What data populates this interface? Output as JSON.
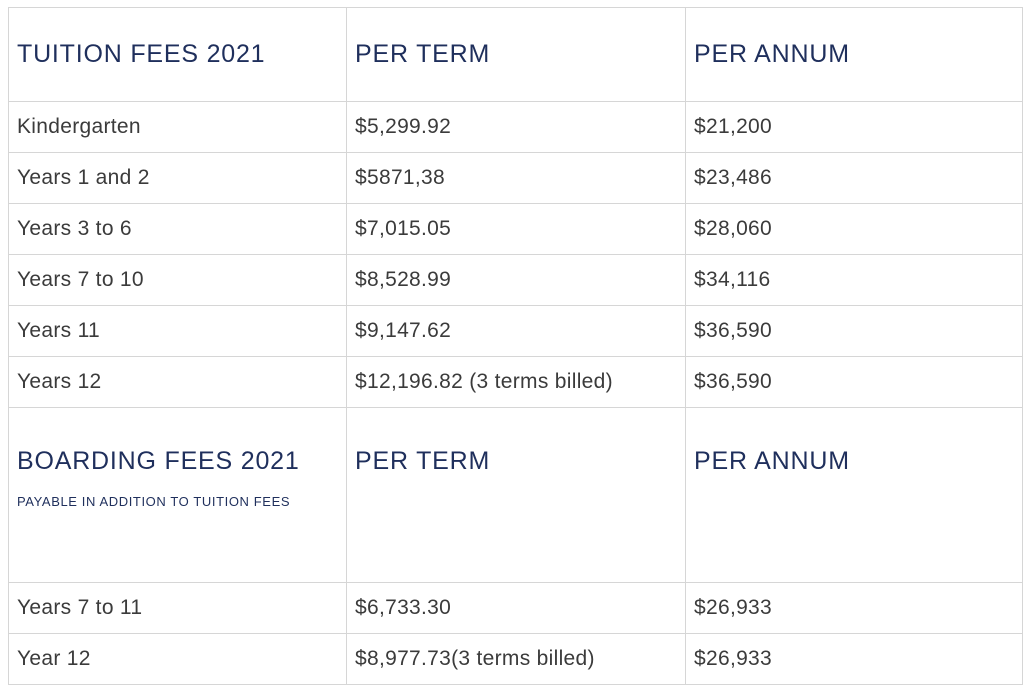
{
  "tuition": {
    "title": "TUITION FEES 2021",
    "col_term": "PER TERM",
    "col_annum": "PER ANNUM",
    "rows": [
      {
        "level": "Kindergarten",
        "term": "$5,299.92",
        "annum": "$21,200"
      },
      {
        "level": "Years 1 and 2",
        "term": "$5871,38",
        "annum": "$23,486"
      },
      {
        "level": "Years 3 to 6",
        "term": "$7,015.05",
        "annum": "$28,060"
      },
      {
        "level": "Years 7 to 10",
        "term": "$8,528.99",
        "annum": "$34,116"
      },
      {
        "level": "Years 11",
        "term": "$9,147.62",
        "annum": "$36,590"
      },
      {
        "level": "Years 12",
        "term": "$12,196.82 (3 terms billed)",
        "annum": "$36,590"
      }
    ]
  },
  "boarding": {
    "title": "BOARDING FEES 2021",
    "subtitle": "PAYABLE IN ADDITION TO TUITION FEES",
    "col_term": "PER TERM",
    "col_annum": "PER ANNUM",
    "rows": [
      {
        "level": "Years 7 to 11",
        "term": "$6,733.30",
        "annum": "$26,933"
      },
      {
        "level": "Year 12",
        "term": "$8,977.73(3 terms billed)",
        "annum": "$26,933"
      }
    ]
  },
  "colors": {
    "heading": "#1f2f5c",
    "text": "#3b3b3b",
    "border": "#d6d6d6"
  }
}
